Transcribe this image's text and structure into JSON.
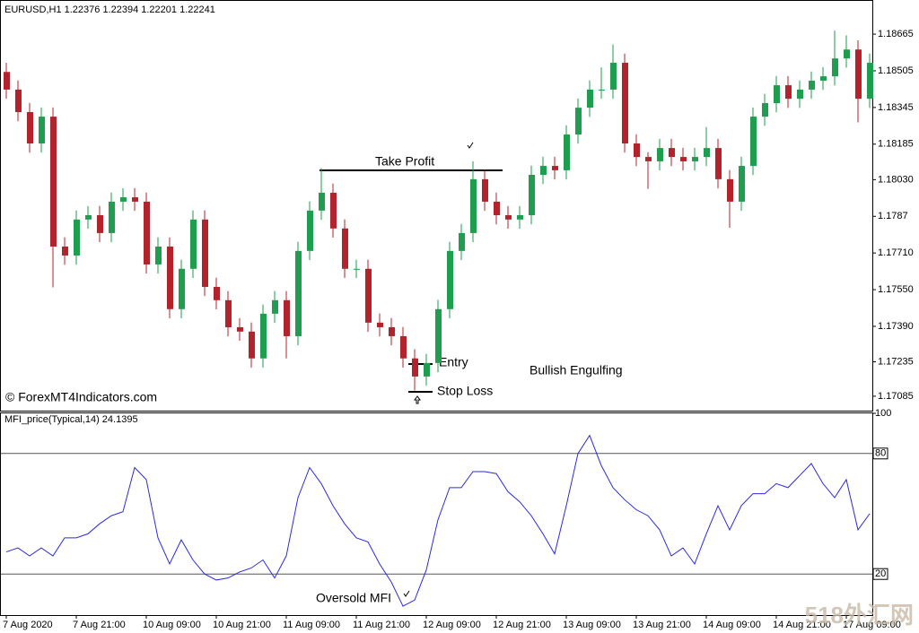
{
  "chart_data": [
    {
      "type": "candlestick",
      "title": "EURUSD,H1  1.22376 1.22394 1.22201 1.22241",
      "open": [
        1.185,
        1.18423,
        1.18325,
        1.18188,
        1.18305,
        1.17738,
        1.17699,
        1.17856,
        1.17875,
        1.17797,
        1.17934,
        1.17953,
        1.17934,
        1.1766,
        1.17738,
        1.17465,
        1.17641,
        1.17856,
        1.17562,
        1.17504,
        1.17386,
        1.17367,
        1.1725,
        1.17445,
        1.17504,
        1.17347,
        1.17719,
        1.17895,
        1.17973,
        1.17817,
        1.17641,
        1.17641,
        1.17406,
        1.17386,
        1.17347,
        1.1725,
        1.17171,
        1.1723,
        1.17465,
        1.17719,
        1.17797,
        1.18032,
        1.17934,
        1.17875,
        1.17856,
        1.17875,
        1.18051,
        1.1809,
        1.18071,
        1.18227,
        1.18344,
        1.18423,
        1.18423,
        1.1854,
        1.18188,
        1.18129,
        1.1811,
        1.18168,
        1.18129,
        1.1811,
        1.18129,
        1.18168,
        1.18032,
        1.17934,
        1.1809,
        1.18305,
        1.18364,
        1.18442,
        1.18383,
        1.18423,
        1.18462,
        1.18481,
        1.18559,
        1.18598,
        1.18383
      ],
      "high": [
        1.1854,
        1.18463,
        1.18365,
        1.18345,
        1.18345,
        1.17778,
        1.17896,
        1.17915,
        1.17915,
        1.17974,
        1.17993,
        1.17993,
        1.17974,
        1.17778,
        1.17778,
        1.17681,
        1.17896,
        1.17896,
        1.17602,
        1.17544,
        1.17426,
        1.17407,
        1.17485,
        1.17544,
        1.17544,
        1.17759,
        1.17935,
        1.1808,
        1.18013,
        1.17857,
        1.17681,
        1.17681,
        1.17446,
        1.17426,
        1.17387,
        1.1729,
        1.1727,
        1.17505,
        1.17759,
        1.17837,
        1.1811,
        1.18072,
        1.17974,
        1.17915,
        1.17915,
        1.18091,
        1.1813,
        1.1813,
        1.18267,
        1.18384,
        1.18463,
        1.1852,
        1.1862,
        1.1858,
        1.18228,
        1.1815,
        1.18208,
        1.18208,
        1.18169,
        1.18169,
        1.1826,
        1.18208,
        1.18072,
        1.1813,
        1.18345,
        1.18404,
        1.18482,
        1.18482,
        1.18463,
        1.18502,
        1.18521,
        1.1868,
        1.1866,
        1.18638,
        1.1858
      ],
      "low": [
        1.18383,
        1.18285,
        1.18148,
        1.18148,
        1.1756,
        1.17659,
        1.17659,
        1.17816,
        1.17757,
        1.17757,
        1.17894,
        1.17894,
        1.1762,
        1.1762,
        1.17425,
        1.17425,
        1.17601,
        1.17522,
        1.17464,
        1.17346,
        1.17327,
        1.1721,
        1.1721,
        1.17405,
        1.1725,
        1.17307,
        1.17679,
        1.17855,
        1.17777,
        1.17601,
        1.17601,
        1.17366,
        1.17346,
        1.17307,
        1.1721,
        1.1711,
        1.17131,
        1.1719,
        1.17425,
        1.17679,
        1.17757,
        1.17894,
        1.17835,
        1.17816,
        1.17816,
        1.17835,
        1.18011,
        1.18031,
        1.18031,
        1.18187,
        1.18304,
        1.18383,
        1.18383,
        1.18148,
        1.18089,
        1.1799,
        1.1807,
        1.18089,
        1.1807,
        1.1807,
        1.18089,
        1.17992,
        1.1782,
        1.17894,
        1.1805,
        1.18265,
        1.18324,
        1.18343,
        1.18343,
        1.18383,
        1.18422,
        1.18441,
        1.18519,
        1.1828,
        1.18343
      ],
      "close": [
        1.18423,
        1.18325,
        1.18188,
        1.18305,
        1.17738,
        1.17699,
        1.17856,
        1.17875,
        1.17797,
        1.17934,
        1.17953,
        1.17934,
        1.1766,
        1.17738,
        1.17465,
        1.17641,
        1.17856,
        1.17562,
        1.17504,
        1.17386,
        1.17367,
        1.1725,
        1.17445,
        1.17504,
        1.17347,
        1.17719,
        1.17895,
        1.17973,
        1.17817,
        1.17641,
        1.17641,
        1.17406,
        1.17386,
        1.17347,
        1.1725,
        1.17171,
        1.1723,
        1.17465,
        1.17719,
        1.17797,
        1.18032,
        1.17934,
        1.17875,
        1.17856,
        1.17875,
        1.18051,
        1.1809,
        1.18071,
        1.18227,
        1.18344,
        1.18423,
        1.18423,
        1.1854,
        1.18188,
        1.18129,
        1.1811,
        1.18168,
        1.18129,
        1.1811,
        1.18129,
        1.18168,
        1.18032,
        1.17934,
        1.1809,
        1.18305,
        1.18364,
        1.18442,
        1.18383,
        1.18423,
        1.18462,
        1.18481,
        1.18559,
        1.18598,
        1.18383,
        1.1854
      ],
      "up_color": "#1e9e4e",
      "down_color": "#b3232b",
      "ylim": [
        1.17022,
        1.18814
      ],
      "yticks": [
        1.18665,
        1.18505,
        1.18345,
        1.18185,
        {
          "value": 1.1803,
          "label": "1.18030"
        },
        1.1787,
        {
          "value": 1.1771,
          "label": "1.17710"
        },
        {
          "value": 1.1755,
          "label": "1.17550"
        },
        {
          "value": 1.1739,
          "label": "1.17390"
        },
        1.17235,
        1.17085
      ],
      "annotations": [
        "Take Profit",
        "Entry",
        "Stop Loss",
        "Bullish Engulfing",
        "© ForexMT4Indicators.com"
      ]
    },
    {
      "type": "line",
      "title": "MFI_price(Typical,14) 24.1395",
      "values": [
        31,
        33,
        29,
        33,
        29,
        38,
        38,
        40,
        45,
        49,
        51,
        73,
        67,
        38,
        25,
        37,
        27,
        20,
        17,
        18,
        21,
        23,
        27,
        18,
        29,
        58,
        73,
        65,
        54,
        45,
        38,
        36,
        25,
        16,
        4,
        7,
        22,
        47,
        63,
        63,
        71,
        71,
        70,
        61,
        56,
        49,
        40,
        30,
        54,
        80,
        89,
        74,
        63,
        57,
        52,
        49,
        42,
        29,
        33,
        25,
        40,
        54,
        42,
        54,
        60,
        60,
        65,
        63,
        69,
        75,
        65,
        58,
        67,
        42,
        50
      ],
      "color": "#2a2ae0",
      "ylim": [
        0,
        100
      ],
      "yticks": [
        100,
        80,
        20
      ],
      "levels": [
        80,
        20
      ],
      "xticks": [
        {
          "value": 0,
          "label": "7 Aug 2020"
        },
        {
          "value": 6,
          "label": "7 Aug 21:00"
        },
        {
          "value": 12,
          "label": "10 Aug 09:00"
        },
        {
          "value": 18,
          "label": "10 Aug 21:00"
        },
        {
          "value": 24,
          "label": "11 Aug 09:00"
        },
        {
          "value": 30,
          "label": "11 Aug 21:00"
        },
        {
          "value": 36,
          "label": "12 Aug 09:00"
        },
        {
          "value": 42,
          "label": "12 Aug 21:00"
        },
        {
          "value": 48,
          "label": "13 Aug 09:00"
        },
        {
          "value": 54,
          "label": "13 Aug 21:00"
        },
        {
          "value": 60,
          "label": "14 Aug 09:00"
        },
        {
          "value": 66,
          "label": "14 Aug 21:00"
        },
        {
          "value": 72,
          "label": "17 Aug 09:00"
        }
      ],
      "annotations": [
        "Oversold MFI"
      ]
    }
  ],
  "watermark": "518外汇网"
}
